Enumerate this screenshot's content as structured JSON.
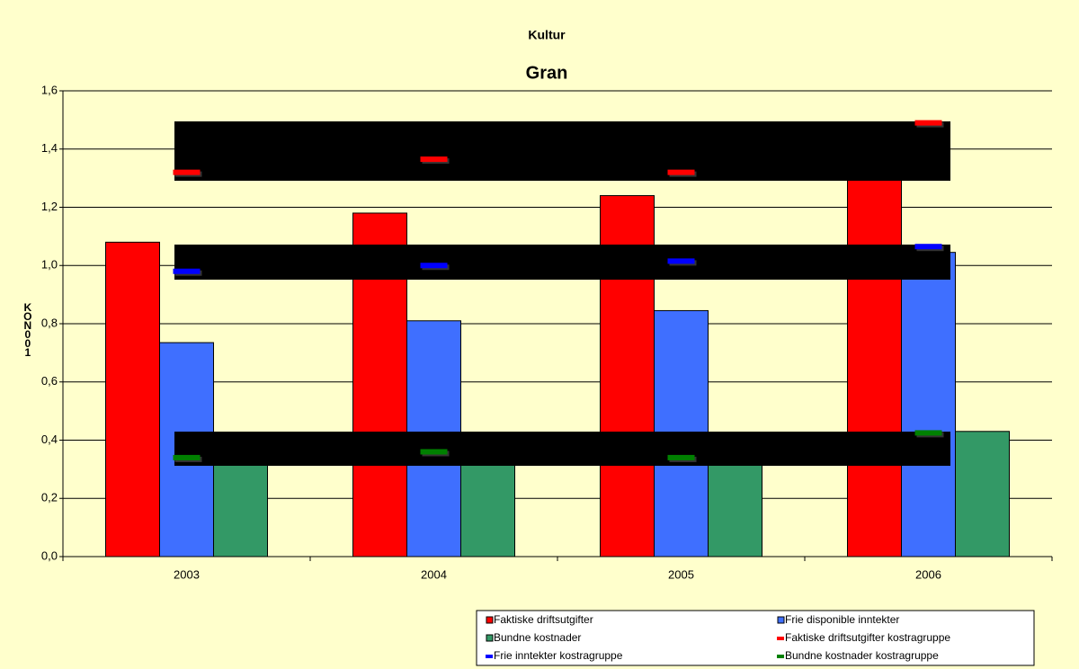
{
  "chart_data": {
    "type": "bar",
    "title": "Kultur",
    "subtitle": "Gran",
    "y_label": "KON001",
    "categories": [
      "2003",
      "2004",
      "2005",
      "2006"
    ],
    "series": [
      {
        "name": "Faktiske driftsutgifter",
        "color": "#ff0000",
        "style": "bar",
        "values": [
          1.08,
          1.18,
          1.24,
          1.35
        ]
      },
      {
        "name": "Frie disponible inntekter",
        "color": "#3f6fff",
        "style": "bar",
        "values": [
          0.735,
          0.81,
          0.845,
          1.045
        ]
      },
      {
        "name": "Bundne kostnader",
        "color": "#339966",
        "style": "bar",
        "values": [
          0.34,
          0.36,
          0.34,
          0.43
        ]
      },
      {
        "name": "Faktiske driftsutgifter kostragruppe",
        "color": "#ff0000",
        "style": "marker",
        "values": [
          1.32,
          1.365,
          1.32,
          1.49
        ]
      },
      {
        "name": "Frie inntekter kostragruppe",
        "color": "#0000ff",
        "style": "marker",
        "values": [
          0.98,
          1.0,
          1.015,
          1.065
        ]
      },
      {
        "name": "Bundne kostnader kostragruppe",
        "color": "#008000",
        "style": "marker",
        "values": [
          0.34,
          0.36,
          0.34,
          0.425
        ]
      }
    ],
    "ylim": [
      0,
      1.6
    ],
    "yticks": [
      {
        "value": 0,
        "label": "0,0"
      },
      {
        "value": 0.2,
        "label": "0,2"
      },
      {
        "value": 0.4,
        "label": "0,4"
      },
      {
        "value": 0.6,
        "label": "0,6"
      },
      {
        "value": 0.8,
        "label": "0,8"
      },
      {
        "value": 1.0,
        "label": "1,0"
      },
      {
        "value": 1.2,
        "label": "1,2"
      },
      {
        "value": 1.4,
        "label": "1,4"
      },
      {
        "value": 1.6,
        "label": "1,6"
      }
    ],
    "grid": true
  }
}
